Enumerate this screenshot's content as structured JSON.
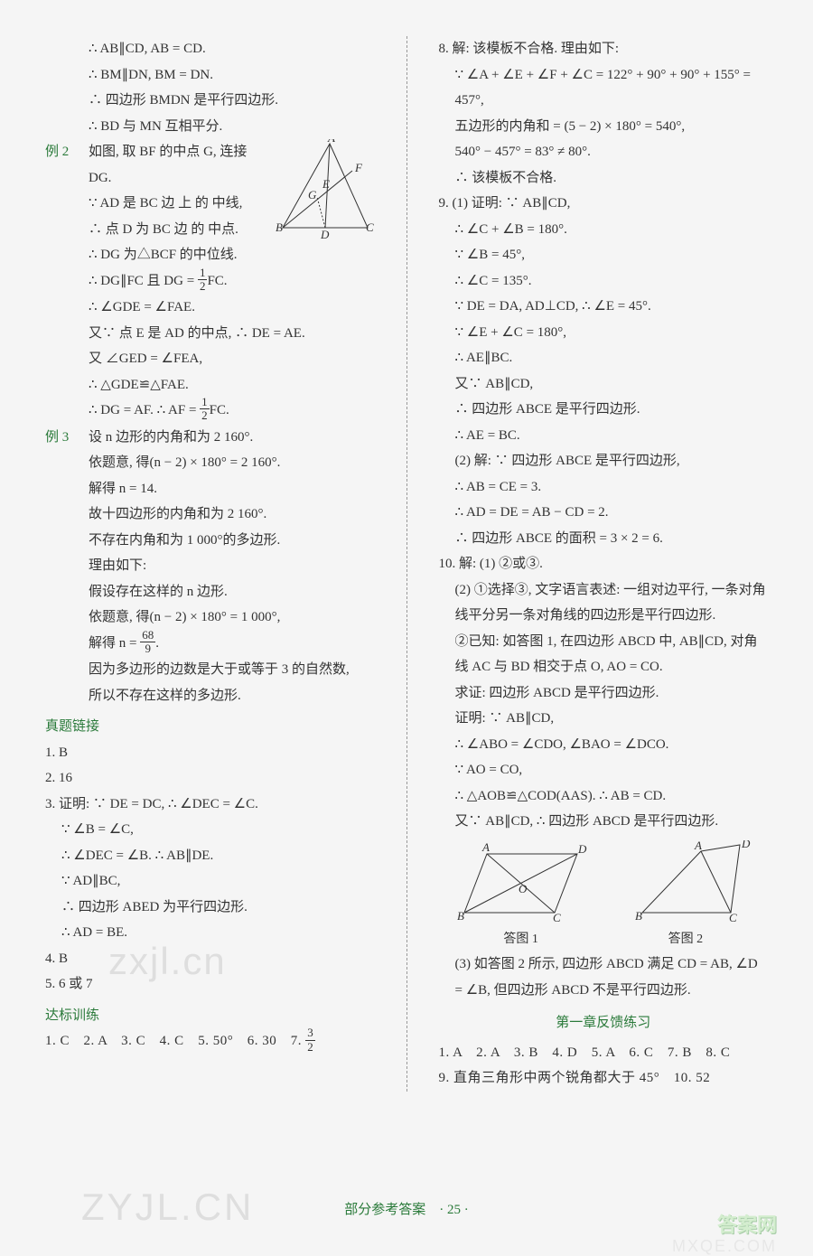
{
  "left": {
    "pre": [
      "∴ AB∥CD, AB = CD.",
      "∴ BM∥DN, BM = DN.",
      "∴ 四边形 BMDN 是平行四边形.",
      "∴ BD 与 MN 互相平分."
    ],
    "ex2": {
      "label": "例 2",
      "lines": [
        "如图, 取 BF 的中点 G, 连接 DG.",
        "∵ AD 是 BC 边 上 的 中线,",
        "∴ 点 D 为 BC 边 的 中点.",
        "∴ DG 为△BCF 的中位线.",
        "∴ DG∥FC 且 DG = __FRAC_1_2__FC.",
        "∴ ∠GDE = ∠FAE.",
        "又∵ 点 E 是 AD 的中点, ∴ DE = AE.",
        "又 ∠GED = ∠FEA,",
        "∴ △GDE≌△FAE.",
        "∴ DG = AF. ∴ AF = __FRAC_1_2__FC."
      ]
    },
    "ex3": {
      "label": "例 3",
      "lines": [
        "设 n 边形的内角和为 2 160°.",
        "依题意, 得(n − 2) × 180° = 2 160°.",
        "解得 n = 14.",
        "故十四边形的内角和为 2 160°.",
        "不存在内角和为 1 000°的多边形.",
        "理由如下:",
        "假设存在这样的 n 边形.",
        "依题意, 得(n − 2) × 180° = 1 000°,",
        "解得 n = __FRAC_68_9__.",
        "因为多边形的边数是大于或等于 3 的自然数,",
        "所以不存在这样的多边形."
      ]
    },
    "zhenti": {
      "title": "真题链接",
      "q1": "1. B",
      "q2": "2. 16",
      "q3": [
        "3. 证明: ∵ DE = DC, ∴ ∠DEC = ∠C.",
        "∵ ∠B = ∠C,",
        "∴ ∠DEC = ∠B. ∴ AB∥DE.",
        "∵ AD∥BC,",
        "∴ 四边形 ABED 为平行四边形.",
        "∴ AD = BE."
      ],
      "q4": "4. B",
      "q5": "5. 6 或 7"
    },
    "dabiao": {
      "title": "达标训练",
      "row": "1. C　2. A　3. C　4. C　5. 50°　6. 30　7. __FRAC_3_2__"
    }
  },
  "right": {
    "q8": [
      "8. 解: 该模板不合格. 理由如下:",
      "∵ ∠A + ∠E + ∠F + ∠C = 122° + 90° + 90° + 155° = 457°,",
      "五边形的内角和 = (5 − 2) × 180° = 540°,",
      "540° − 457° = 83° ≠ 80°.",
      "∴ 该模板不合格."
    ],
    "q9": [
      "9. (1) 证明: ∵ AB∥CD,",
      "∴ ∠C + ∠B = 180°.",
      "∵ ∠B = 45°,",
      "∴ ∠C = 135°.",
      "∵ DE = DA, AD⊥CD, ∴ ∠E = 45°.",
      "∵ ∠E + ∠C = 180°,",
      "∴ AE∥BC.",
      "又∵ AB∥CD,",
      "∴ 四边形 ABCE 是平行四边形.",
      "∴ AE = BC.",
      "(2) 解: ∵ 四边形 ABCE 是平行四边形,",
      "∴ AB = CE = 3.",
      "∴ AD = DE = AB − CD = 2.",
      "∴ 四边形 ABCE 的面积 = 3 × 2 = 6."
    ],
    "q10": [
      "10. 解: (1) ②或③.",
      "(2) ①选择③, 文字语言表述: 一组对边平行, 一条对角线平分另一条对角线的四边形是平行四边形.",
      "②已知: 如答图 1, 在四边形 ABCD 中, AB∥CD, 对角线 AC 与 BD 相交于点 O, AO = CO.",
      "求证: 四边形 ABCD 是平行四边形.",
      "证明: ∵ AB∥CD,",
      "∴ ∠ABO = ∠CDO, ∠BAO = ∠DCO.",
      "∵ AO = CO,",
      "∴ △AOB≌△COD(AAS). ∴ AB = CD.",
      "又∵ AB∥CD, ∴ 四边形 ABCD 是平行四边形."
    ],
    "figcap1": "答图 1",
    "figcap2": "答图 2",
    "q10b": "(3) 如答图 2 所示, 四边形 ABCD 满足 CD = AB, ∠D = ∠B, 但四边形 ABCD 不是平行四边形.",
    "chapter": "第一章反馈练习",
    "row1": "1. A　2. A　3. B　4. D　5. A　6. C　7. B　8. C",
    "row2": "9. 直角三角形中两个锐角都大于 45°　10. 52"
  },
  "footer": "部分参考答案　· 25 ·",
  "watermarks": {
    "w1": "zxjl.cn",
    "w2": "ZYJL.CN",
    "w3": "答案网",
    "w4": "MXQE.COM"
  }
}
